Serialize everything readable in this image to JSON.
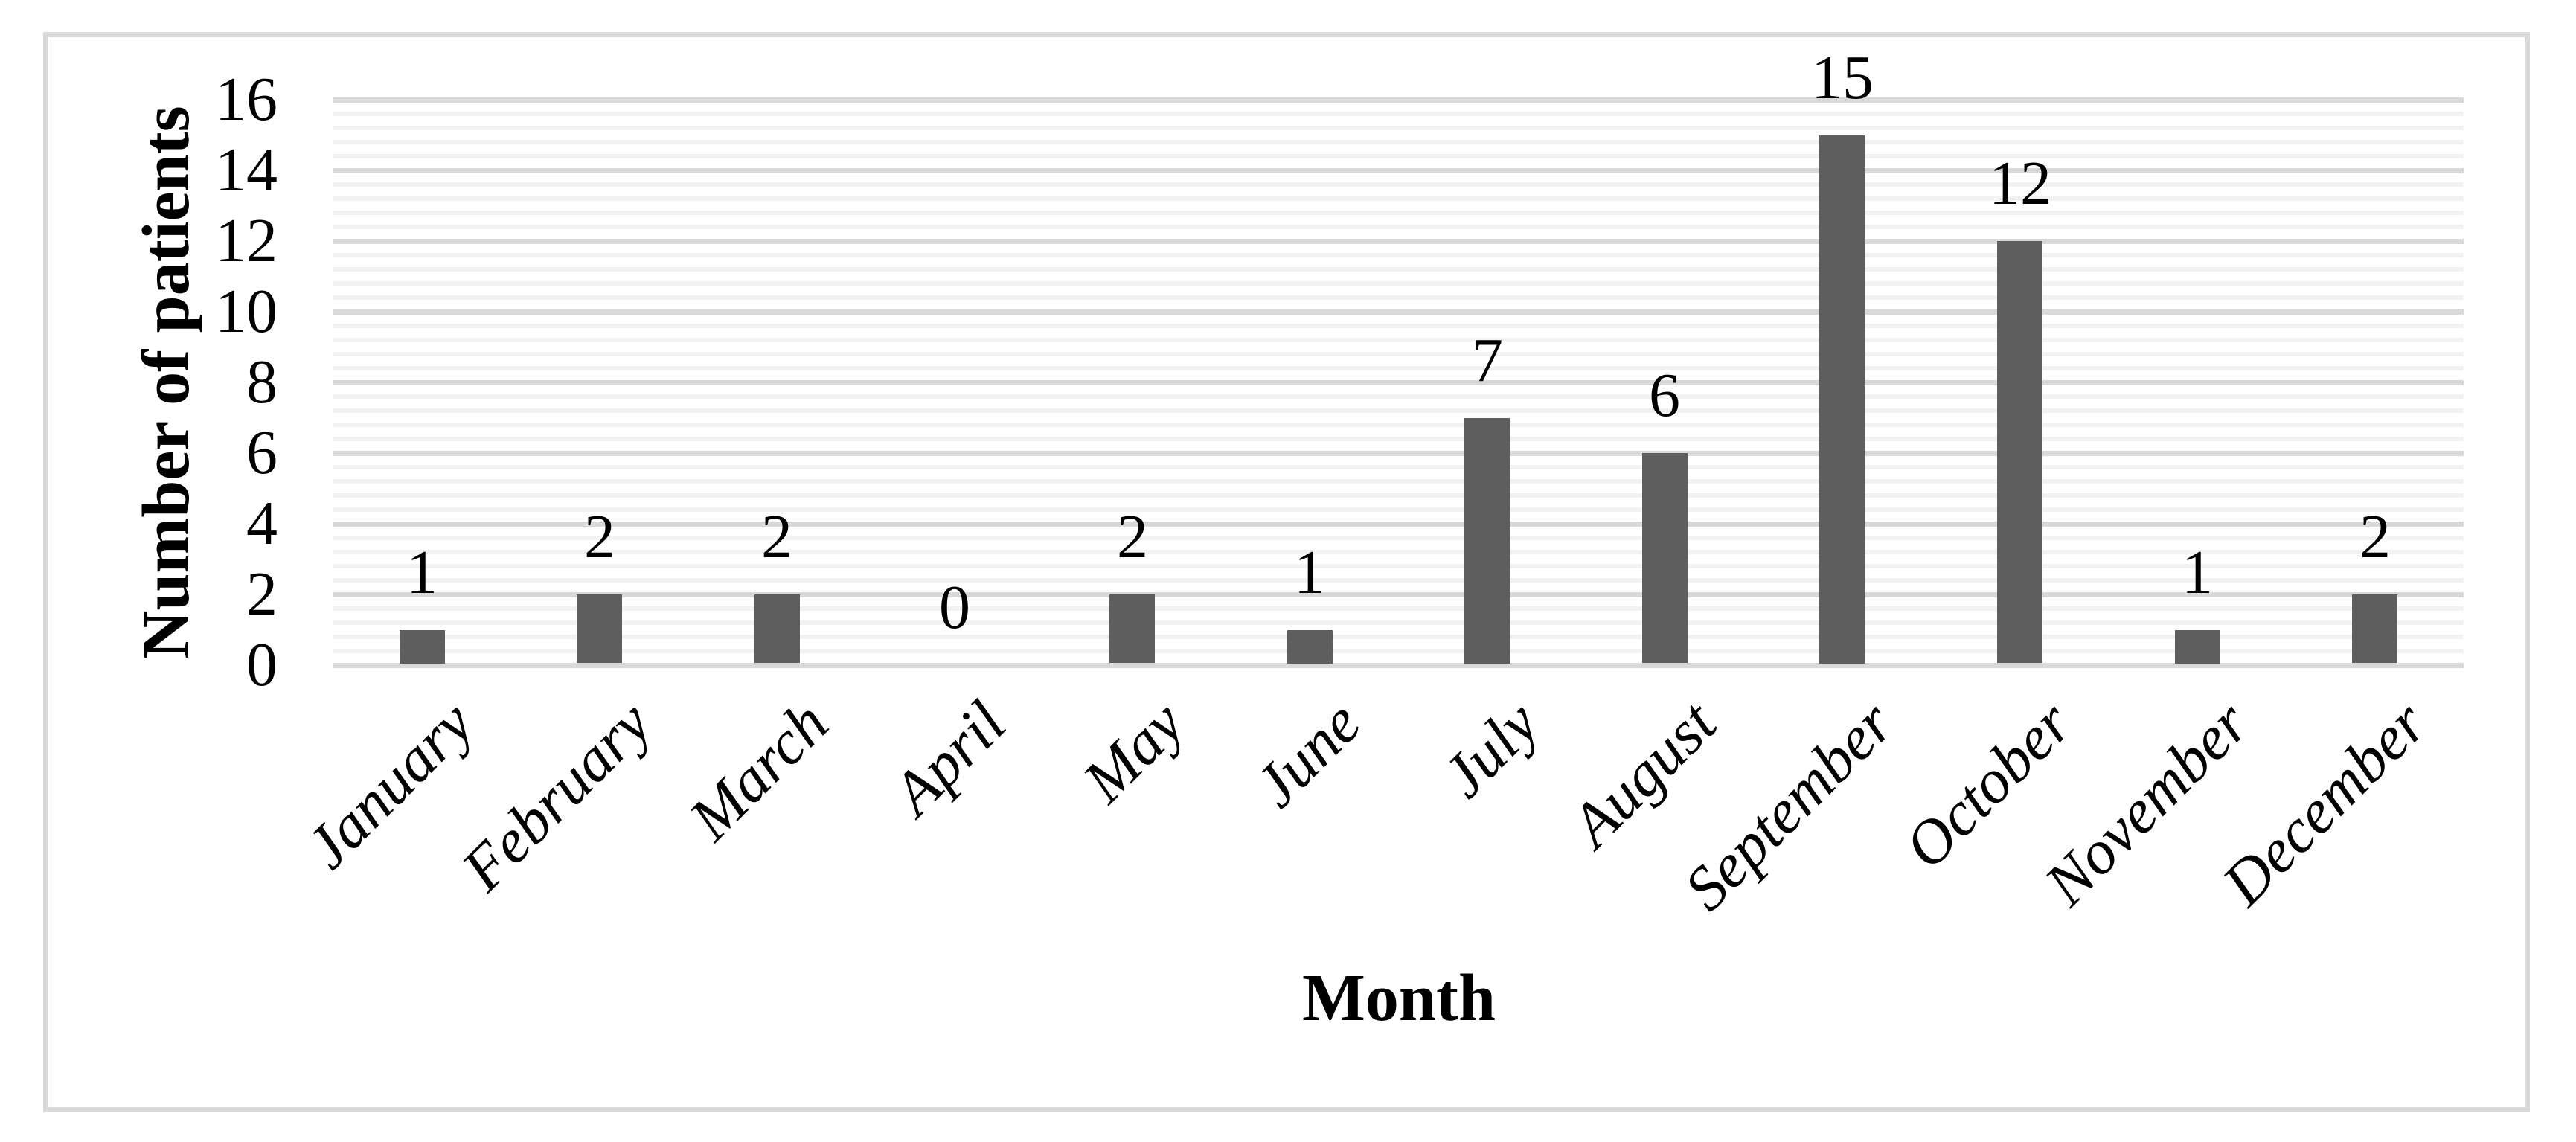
{
  "figure": {
    "background_color": "#ffffff",
    "border_color": "#d9d9d9"
  },
  "chart_data": {
    "type": "bar",
    "title": "",
    "categories": [
      "January",
      "February",
      "March",
      "April",
      "May",
      "June",
      "July",
      "August",
      "September",
      "October",
      "November",
      "December"
    ],
    "values": [
      1,
      2,
      2,
      0,
      2,
      1,
      7,
      6,
      15,
      12,
      1,
      2
    ],
    "data_labels": [
      "1",
      "2",
      "2",
      "0",
      "2",
      "1",
      "7",
      "6",
      "15",
      "12",
      "1",
      "2"
    ],
    "xlabel": "Month",
    "ylabel": "Number of patients",
    "ylim": [
      0,
      16
    ],
    "y_major_unit": 2,
    "y_minor_unit": 0.4,
    "y_tick_labels": [
      "0",
      "2",
      "4",
      "6",
      "8",
      "10",
      "12",
      "14",
      "16"
    ],
    "grid": "horizontal major and minor gridlines, no vertical gridlines",
    "legend": "none",
    "bar_color": "#5e5e5e",
    "major_grid_color": "#d9d9d9",
    "minor_grid_color": "#f2f2f2",
    "axis_line_color": "#d9d9d9",
    "text_color": "#000000"
  }
}
